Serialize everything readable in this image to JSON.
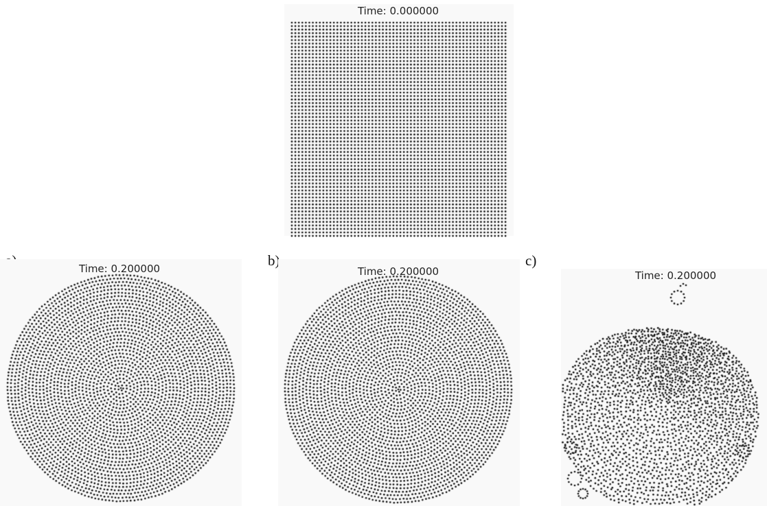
{
  "top": {
    "time_text": "Time: 0.000000"
  },
  "panels": [
    {
      "label": "a)",
      "time_text": "Time: 0.200000"
    },
    {
      "label": "b)",
      "time_text": "Time: 0.200000"
    },
    {
      "label": "c)",
      "time_text": "Time: 0.200000"
    }
  ],
  "colors": {
    "particle": "#111111",
    "frame_background": "#f9f9f9"
  }
}
